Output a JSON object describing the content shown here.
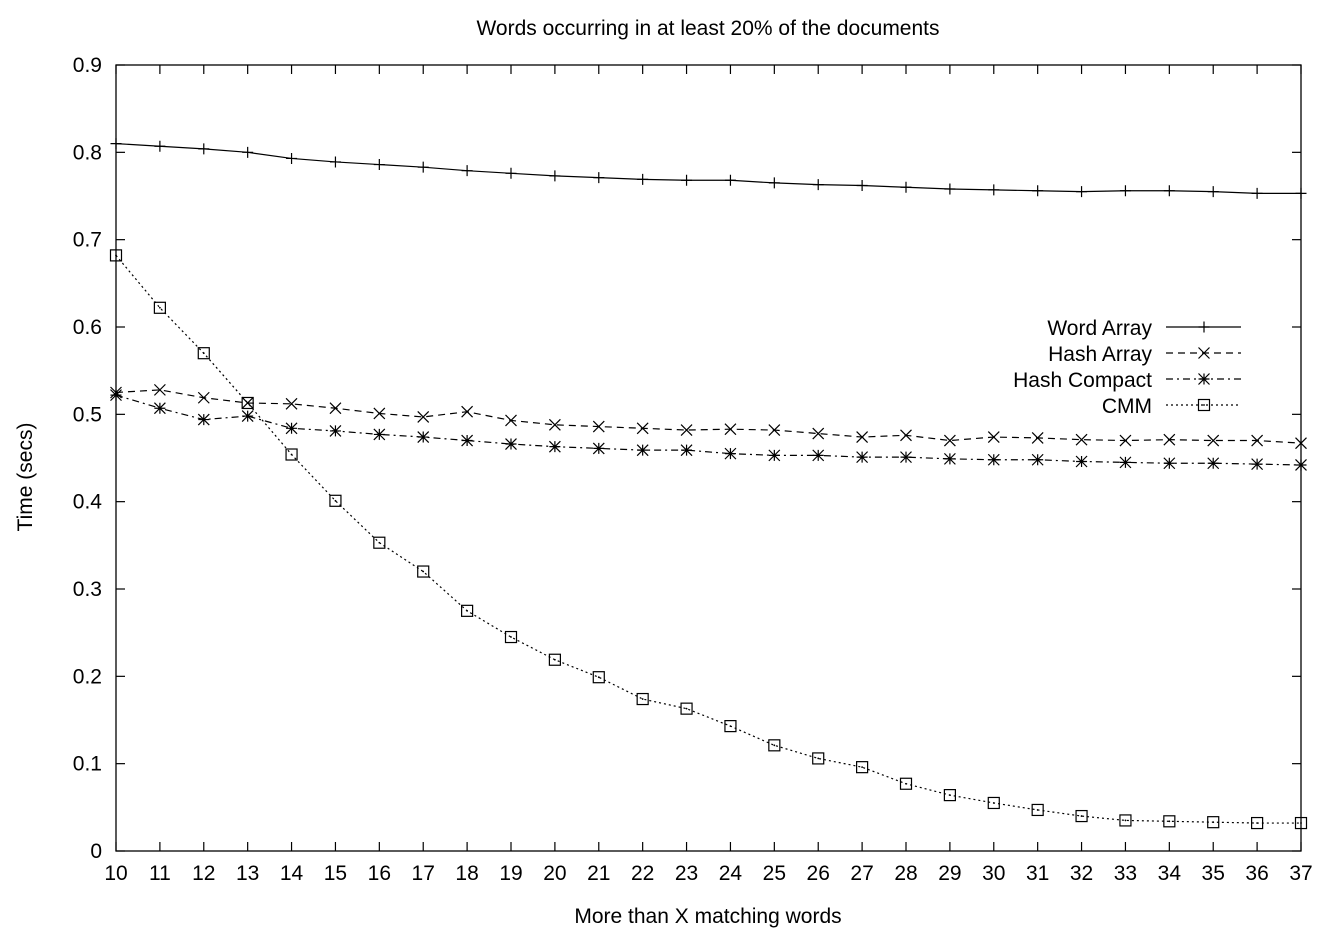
{
  "chart_data": {
    "type": "line",
    "title": "Words occurring in at least 20% of the documents",
    "xlabel": "More than X matching words",
    "ylabel": "Time (secs)",
    "xlim": [
      10,
      37
    ],
    "ylim": [
      0,
      0.9
    ],
    "x": [
      10,
      11,
      12,
      13,
      14,
      15,
      16,
      17,
      18,
      19,
      20,
      21,
      22,
      23,
      24,
      25,
      26,
      27,
      28,
      29,
      30,
      31,
      32,
      33,
      34,
      35,
      36,
      37
    ],
    "xticks": [
      "10",
      "11",
      "12",
      "13",
      "14",
      "15",
      "16",
      "17",
      "18",
      "19",
      "20",
      "21",
      "22",
      "23",
      "24",
      "25",
      "26",
      "27",
      "28",
      "29",
      "30",
      "31",
      "32",
      "33",
      "34",
      "35",
      "36",
      "37"
    ],
    "yticks": [
      "0",
      "0.1",
      "0.2",
      "0.3",
      "0.4",
      "0.5",
      "0.6",
      "0.7",
      "0.8",
      "0.9"
    ],
    "grid": false,
    "legend_position": "right",
    "series": [
      {
        "name": "Word Array",
        "marker": "plus",
        "dash": "solid",
        "values": [
          0.81,
          0.807,
          0.804,
          0.8,
          0.793,
          0.789,
          0.786,
          0.783,
          0.779,
          0.776,
          0.773,
          0.771,
          0.769,
          0.768,
          0.768,
          0.765,
          0.763,
          0.762,
          0.76,
          0.758,
          0.757,
          0.756,
          0.755,
          0.756,
          0.756,
          0.755,
          0.753,
          0.753
        ]
      },
      {
        "name": "Hash Array",
        "marker": "cross",
        "dash": "dashed",
        "values": [
          0.525,
          0.528,
          0.519,
          0.513,
          0.512,
          0.507,
          0.501,
          0.497,
          0.503,
          0.493,
          0.488,
          0.486,
          0.484,
          0.482,
          0.483,
          0.482,
          0.478,
          0.474,
          0.476,
          0.47,
          0.474,
          0.473,
          0.471,
          0.47,
          0.471,
          0.47,
          0.47,
          0.467
        ]
      },
      {
        "name": "Hash Compact",
        "marker": "star",
        "dash": "dashdot",
        "values": [
          0.522,
          0.507,
          0.494,
          0.498,
          0.484,
          0.481,
          0.477,
          0.474,
          0.47,
          0.466,
          0.463,
          0.461,
          0.459,
          0.459,
          0.455,
          0.453,
          0.453,
          0.451,
          0.451,
          0.449,
          0.448,
          0.448,
          0.446,
          0.445,
          0.444,
          0.444,
          0.443,
          0.442
        ]
      },
      {
        "name": "CMM",
        "marker": "square",
        "dash": "dotted",
        "values": [
          0.682,
          0.622,
          0.57,
          0.513,
          0.454,
          0.401,
          0.353,
          0.32,
          0.275,
          0.245,
          0.219,
          0.199,
          0.174,
          0.163,
          0.143,
          0.121,
          0.106,
          0.096,
          0.077,
          0.064,
          0.055,
          0.047,
          0.04,
          0.035,
          0.034,
          0.033,
          0.032,
          0.032
        ]
      }
    ]
  }
}
